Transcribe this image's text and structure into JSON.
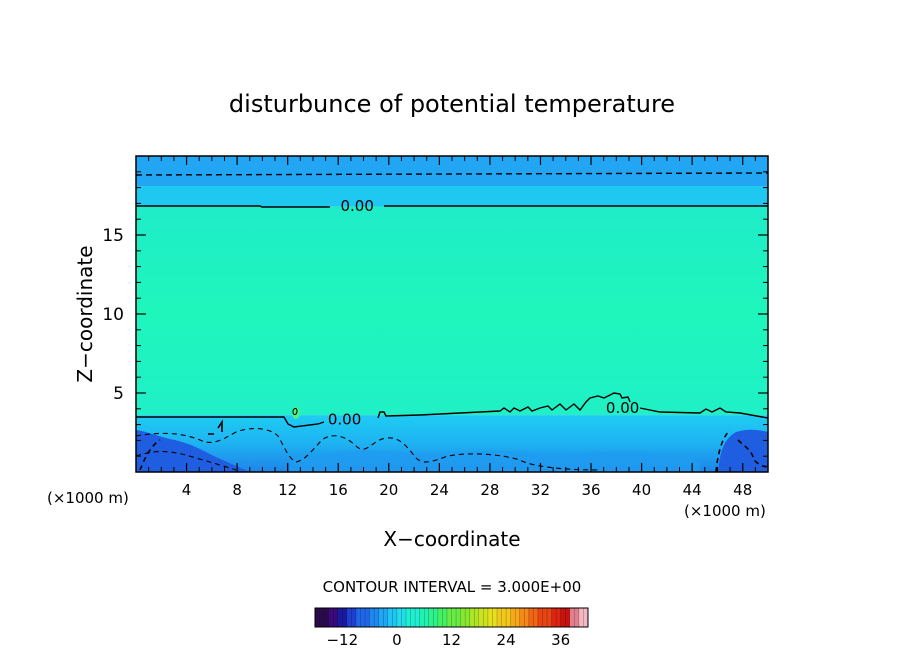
{
  "chart_data": {
    "type": "heatmap",
    "title": "disturbunce of potential temperature",
    "xlabel": "X−coordinate",
    "ylabel": "Z−coordinate",
    "x_unit_left": "(×1000 m)",
    "x_unit_right": "(×1000 m)",
    "xlim": [
      0,
      50
    ],
    "ylim": [
      0,
      20
    ],
    "x_ticks": [
      4,
      8,
      12,
      16,
      20,
      24,
      28,
      32,
      36,
      40,
      44,
      48
    ],
    "y_ticks": [
      5,
      10,
      15
    ],
    "contour_interval_text": "CONTOUR INTERVAL = 3.000E+00",
    "contour_interval": 3.0,
    "contour_labels": [
      {
        "text": "0.00",
        "x": 17.5,
        "z": 16.9
      },
      {
        "text": "0.00",
        "x": 16.5,
        "z": 3.4
      },
      {
        "text": "0.00",
        "x": 38.5,
        "z": 4.1
      }
    ],
    "colorbar": {
      "min": -18,
      "max": 42,
      "ticks": [
        -12,
        0,
        12,
        24,
        36
      ],
      "colors": [
        "#2b0a4a",
        "#3a0a7a",
        "#1a1aa0",
        "#1f3fd0",
        "#1f66e8",
        "#1e88f0",
        "#1ea8f4",
        "#22c4f2",
        "#22dcea",
        "#1ff0d2",
        "#22f2b0",
        "#2ef28a",
        "#44f064",
        "#66ec44",
        "#88e830",
        "#aae626",
        "#cce420",
        "#e6e01e",
        "#f2c81c",
        "#f4a81a",
        "#f48818",
        "#f06616",
        "#e84414",
        "#dc2412",
        "#c81210",
        "#e0808c",
        "#f2b8c4"
      ]
    },
    "field_bands": [
      {
        "z0": 18.1,
        "z1": 20.0,
        "color": "#22a6f4"
      },
      {
        "z0": 16.8,
        "z1": 18.1,
        "color": "#1ec8f0"
      },
      {
        "z0": 3.6,
        "z1": 16.8,
        "color": "#1ff2c8"
      },
      {
        "z0": 2.3,
        "z1": 3.6,
        "color": "#22c8f2"
      },
      {
        "z0": 0,
        "z1": 2.3,
        "color": "#1e96ec"
      }
    ]
  }
}
